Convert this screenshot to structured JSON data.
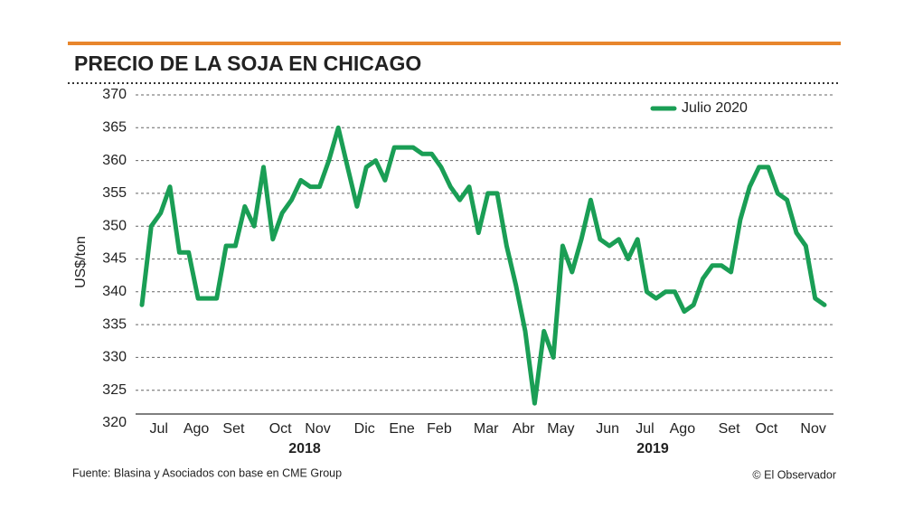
{
  "chart_data": {
    "type": "line",
    "title": "PRECIO DE LA SOJA EN CHICAGO",
    "y_label": "US$/ton",
    "source": "Fuente: Blasina y Asociados con base en CME Group",
    "credit": "© El Observador",
    "year_labels": [
      "2018",
      "2019"
    ],
    "categories": [
      null,
      null,
      "Jul",
      null,
      null,
      null,
      "Ago",
      null,
      null,
      null,
      "Set",
      null,
      null,
      null,
      null,
      "Oct",
      null,
      null,
      null,
      "Nov",
      null,
      null,
      null,
      null,
      "Dic",
      null,
      null,
      null,
      "Ene",
      null,
      null,
      null,
      "Feb",
      null,
      null,
      null,
      null,
      "Mar",
      null,
      null,
      null,
      "Abr",
      null,
      null,
      null,
      "May",
      null,
      null,
      null,
      null,
      "Jun",
      null,
      null,
      null,
      "Jul",
      null,
      null,
      null,
      "Ago",
      null,
      null,
      null,
      null,
      "Set",
      null,
      null,
      null,
      "Oct",
      null,
      null,
      null,
      null,
      "Nov",
      null
    ],
    "series": [
      {
        "name": "Julio 2020",
        "color": "#1a9e55",
        "values": [
          338,
          350,
          352,
          356,
          346,
          346,
          339,
          339,
          339,
          347,
          347,
          353,
          350,
          359,
          348,
          352,
          354,
          357,
          356,
          356,
          360,
          365,
          359,
          353,
          359,
          360,
          357,
          362,
          362,
          362,
          361,
          361,
          359,
          356,
          354,
          356,
          349,
          355,
          355,
          347,
          341,
          334,
          323,
          334,
          330,
          347,
          343,
          348,
          354,
          348,
          347,
          348,
          345,
          348,
          340,
          339,
          340,
          340,
          337,
          338,
          342,
          344,
          344,
          343,
          351,
          356,
          359,
          359,
          355,
          354,
          349,
          347,
          339,
          338
        ]
      }
    ],
    "ylim": [
      320,
      370
    ],
    "yticks": [
      320,
      325,
      330,
      335,
      340,
      345,
      350,
      355,
      360,
      365,
      370
    ],
    "grid": true,
    "legend": "top-right"
  }
}
